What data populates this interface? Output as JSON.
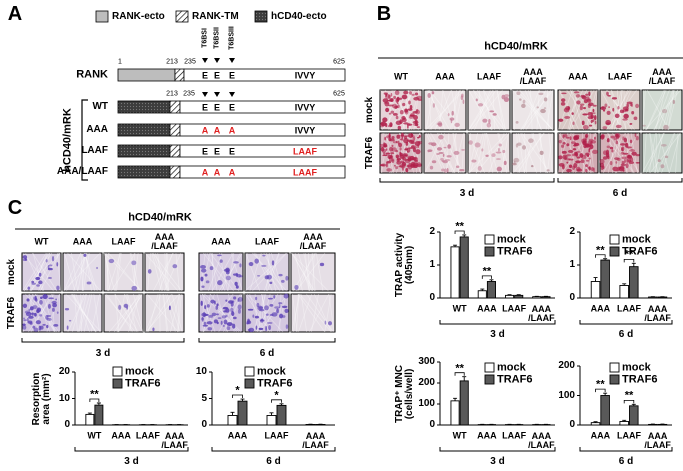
{
  "panel_a": {
    "label": "A",
    "legend": [
      "RANK-ecto",
      "RANK-TM",
      "hCD40-ecto"
    ],
    "rank": {
      "name": "RANK",
      "positions": [
        "1",
        "213",
        "235",
        "625"
      ],
      "sites": [
        "T6BSI",
        "T6BSII",
        "T6BSIII"
      ],
      "motifs": [
        "E",
        "E",
        "E",
        "IVVY"
      ]
    },
    "group_label": "hCD40/mRK",
    "constructs": [
      {
        "name": "WT",
        "positions": [
          "213",
          "235",
          "625"
        ],
        "motifs": [
          "E",
          "E",
          "E",
          "IVVY"
        ]
      },
      {
        "name": "AAA",
        "motifs": [
          "A",
          "A",
          "A",
          "IVVY"
        ]
      },
      {
        "name": "LAAF",
        "motifs": [
          "E",
          "E",
          "E",
          "LAAF"
        ]
      },
      {
        "name": "AAA/LAAF",
        "motifs": [
          "A",
          "A",
          "A",
          "LAAF"
        ]
      }
    ]
  },
  "panel_b": {
    "label": "B",
    "title": "hCD40/mRK",
    "columns": [
      "WT",
      "AAA",
      "LAAF",
      "AAA\n/LAAF",
      "AAA",
      "LAAF",
      "AAA\n/LAAF"
    ],
    "rows": [
      "mock",
      "TRAF6"
    ],
    "groups": [
      "3 d",
      "6 d"
    ]
  },
  "panel_c": {
    "label": "C",
    "title": "hCD40/mRK",
    "columns": [
      "WT",
      "AAA",
      "LAAF",
      "AAA\n/LAAF",
      "AAA",
      "LAAF",
      "AAA\n/LAAF"
    ],
    "rows": [
      "mock",
      "TRAF6"
    ],
    "groups": [
      "3 d",
      "6 d"
    ]
  },
  "chart_data": [
    {
      "type": "bar",
      "ylabel": "TRAP activity\n(405nm)",
      "group_label": "3 d",
      "categories": [
        "WT",
        "AAA",
        "LAAF",
        "AAA\n/LAAF"
      ],
      "series": [
        {
          "name": "mock",
          "color": "#ffffff",
          "values": [
            1.55,
            0.22,
            0.08,
            0.04
          ],
          "errors": [
            0.05,
            0.05,
            0.02,
            0.01
          ]
        },
        {
          "name": "TRAF6",
          "color": "#595959",
          "values": [
            1.85,
            0.5,
            0.08,
            0.04
          ],
          "errors": [
            0.06,
            0.05,
            0.02,
            0.01
          ]
        }
      ],
      "significance": [
        "**",
        "**",
        null,
        null
      ],
      "ylim": [
        0,
        2
      ],
      "yticks": [
        0,
        1,
        2
      ],
      "legend": "upper right"
    },
    {
      "type": "bar",
      "group_label": "6 d",
      "categories": [
        "AAA",
        "LAAF",
        "AAA\n/LAAF"
      ],
      "series": [
        {
          "name": "mock",
          "color": "#ffffff",
          "values": [
            0.5,
            0.38,
            0.03
          ],
          "errors": [
            0.12,
            0.05,
            0.01
          ]
        },
        {
          "name": "TRAF6",
          "color": "#595959",
          "values": [
            1.15,
            0.95,
            0.03
          ],
          "errors": [
            0.04,
            0.1,
            0.01
          ]
        }
      ],
      "significance": [
        "**",
        "**",
        null
      ],
      "ylim": [
        0,
        2
      ],
      "yticks": [
        0,
        1,
        2
      ],
      "legend": "upper right"
    },
    {
      "type": "bar",
      "ylabel": "TRAP⁺ MNC\n(cells/well)",
      "group_label": "3 d",
      "categories": [
        "WT",
        "AAA",
        "LAAF",
        "AAA\n/LAAF"
      ],
      "series": [
        {
          "name": "mock",
          "color": "#ffffff",
          "values": [
            115,
            2,
            2,
            2
          ],
          "errors": [
            12,
            1,
            1,
            1
          ]
        },
        {
          "name": "TRAF6",
          "color": "#595959",
          "values": [
            210,
            2,
            2,
            2
          ],
          "errors": [
            20,
            1,
            1,
            1
          ]
        }
      ],
      "significance": [
        "**",
        null,
        null,
        null
      ],
      "ylim": [
        0,
        300
      ],
      "yticks": [
        0,
        100,
        200,
        300
      ],
      "legend": "upper right"
    },
    {
      "type": "bar",
      "group_label": "6 d",
      "categories": [
        "AAA",
        "LAAF",
        "AAA\n/LAAF"
      ],
      "series": [
        {
          "name": "mock",
          "color": "#ffffff",
          "values": [
            8,
            12,
            2
          ],
          "errors": [
            3,
            4,
            1
          ]
        },
        {
          "name": "TRAF6",
          "color": "#595959",
          "values": [
            100,
            65,
            2
          ],
          "errors": [
            8,
            5,
            1
          ]
        }
      ],
      "significance": [
        "**",
        "**",
        null
      ],
      "ylim": [
        0,
        200
      ],
      "yticks": [
        0,
        100,
        200
      ],
      "legend": "upper right"
    },
    {
      "type": "bar",
      "ylabel": "Resorption\narea (mm²)",
      "group_label": "3 d",
      "categories": [
        "WT",
        "AAA",
        "LAAF",
        "AAA\n/LAAF"
      ],
      "series": [
        {
          "name": "mock",
          "color": "#ffffff",
          "values": [
            4,
            0.1,
            0.1,
            0.1
          ],
          "errors": [
            0.5,
            0.05,
            0.05,
            0.05
          ]
        },
        {
          "name": "TRAF6",
          "color": "#595959",
          "values": [
            7.5,
            0.1,
            0.1,
            0.1
          ],
          "errors": [
            0.8,
            0.05,
            0.05,
            0.05
          ]
        }
      ],
      "significance": [
        "**",
        null,
        null,
        null
      ],
      "ylim": [
        0,
        20
      ],
      "yticks": [
        0,
        10,
        20
      ],
      "legend": "upper right"
    },
    {
      "type": "bar",
      "group_label": "6 d",
      "categories": [
        "AAA",
        "LAAF",
        "AAA\n/LAAF"
      ],
      "series": [
        {
          "name": "mock",
          "color": "#ffffff",
          "values": [
            1.8,
            1.8,
            0.1
          ],
          "errors": [
            0.6,
            0.5,
            0.05
          ]
        },
        {
          "name": "TRAF6",
          "color": "#595959",
          "values": [
            4.5,
            3.7,
            0.1
          ],
          "errors": [
            0.4,
            0.3,
            0.05
          ]
        }
      ],
      "significance": [
        "*",
        "*",
        null
      ],
      "ylim": [
        0,
        10
      ],
      "yticks": [
        0,
        5,
        10
      ],
      "legend": "upper right"
    }
  ]
}
